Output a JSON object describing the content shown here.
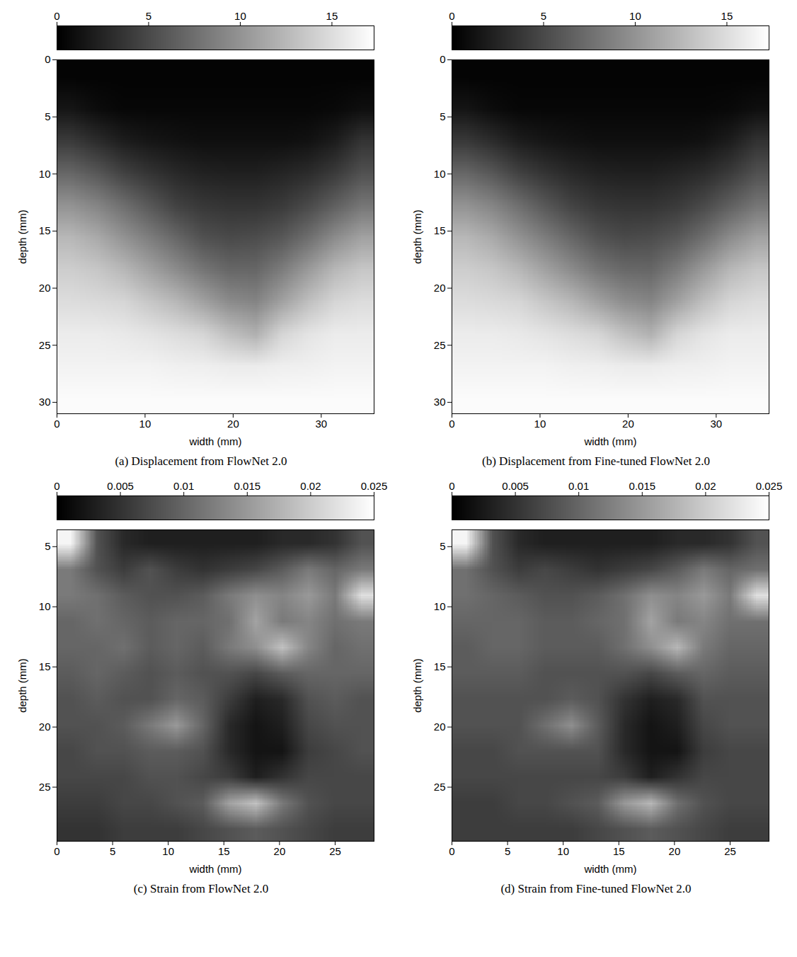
{
  "chart_data": [
    {
      "type": "heatmap",
      "title": "(a) Displacement from FlowNet 2.0",
      "xlabel": "width (mm)",
      "ylabel": "depth (mm)",
      "xlim": [
        0,
        36
      ],
      "ylim": [
        31,
        0
      ],
      "xticks": [
        0,
        10,
        20,
        30
      ],
      "yticks": [
        0,
        5,
        10,
        15,
        20,
        25,
        30
      ],
      "clim": [
        0,
        17.3
      ],
      "cticks": [
        0,
        5,
        10,
        15
      ],
      "cells": [
        [
          0.3,
          0.3,
          0.3,
          0.3,
          0.3,
          0.3,
          0.3,
          0.3,
          0.3,
          0.3,
          0.3,
          0.3
        ],
        [
          1.5,
          0.8,
          0.5,
          0.5,
          0.5,
          0.5,
          0.5,
          0.5,
          0.5,
          0.5,
          0.6,
          1.0
        ],
        [
          4.0,
          3.0,
          2.0,
          1.5,
          1.2,
          1.0,
          1.0,
          1.0,
          1.0,
          1.2,
          2.0,
          3.5
        ],
        [
          7.0,
          6.0,
          4.5,
          3.5,
          2.8,
          2.3,
          2.2,
          2.2,
          2.5,
          3.0,
          4.0,
          5.5
        ],
        [
          10.0,
          9.0,
          7.5,
          6.0,
          4.5,
          3.8,
          3.5,
          3.5,
          4.0,
          5.0,
          6.5,
          8.0
        ],
        [
          12.5,
          11.5,
          10.0,
          8.5,
          7.0,
          5.5,
          5.0,
          5.2,
          6.0,
          7.5,
          9.5,
          11.0
        ],
        [
          14.0,
          13.5,
          12.5,
          11.0,
          9.5,
          8.0,
          7.0,
          7.0,
          8.5,
          10.5,
          12.5,
          13.5
        ],
        [
          15.0,
          14.8,
          14.5,
          13.5,
          12.5,
          11.0,
          9.5,
          9.0,
          11.0,
          13.0,
          14.5,
          15.0
        ],
        [
          16.0,
          16.0,
          15.8,
          15.5,
          15.0,
          14.5,
          13.0,
          12.0,
          14.5,
          15.5,
          16.0,
          16.0
        ],
        [
          16.5,
          16.5,
          16.5,
          16.5,
          16.3,
          16.2,
          16.0,
          16.0,
          16.2,
          16.3,
          16.5,
          16.5
        ],
        [
          17.0,
          17.0,
          17.0,
          17.0,
          17.0,
          17.0,
          17.0,
          17.0,
          17.0,
          17.0,
          17.0,
          17.0
        ]
      ]
    },
    {
      "type": "heatmap",
      "title": "(b) Displacement from Fine-tuned FlowNet 2.0",
      "xlabel": "width (mm)",
      "ylabel": "depth (mm)",
      "xlim": [
        0,
        36
      ],
      "ylim": [
        31,
        0
      ],
      "xticks": [
        0,
        10,
        20,
        30
      ],
      "yticks": [
        0,
        5,
        10,
        15,
        20,
        25,
        30
      ],
      "clim": [
        0,
        17.3
      ],
      "cticks": [
        0,
        5,
        10,
        15
      ],
      "cells": [
        [
          0.3,
          0.3,
          0.3,
          0.3,
          0.3,
          0.3,
          0.3,
          0.3,
          0.3,
          0.3,
          0.3,
          0.3
        ],
        [
          1.4,
          0.8,
          0.5,
          0.5,
          0.5,
          0.5,
          0.5,
          0.5,
          0.5,
          0.5,
          0.6,
          1.0
        ],
        [
          3.9,
          3.0,
          2.0,
          1.5,
          1.2,
          1.0,
          1.0,
          1.0,
          1.0,
          1.2,
          2.0,
          3.4
        ],
        [
          7.0,
          6.0,
          4.5,
          3.5,
          2.8,
          2.3,
          2.2,
          2.2,
          2.5,
          3.0,
          4.0,
          5.5
        ],
        [
          10.0,
          9.0,
          7.5,
          6.0,
          4.6,
          3.8,
          3.5,
          3.5,
          4.0,
          5.0,
          6.5,
          8.0
        ],
        [
          12.5,
          11.5,
          10.0,
          8.5,
          7.0,
          5.6,
          5.0,
          5.2,
          6.0,
          7.5,
          9.5,
          11.0
        ],
        [
          14.0,
          13.5,
          12.5,
          11.0,
          9.5,
          8.0,
          7.1,
          7.0,
          8.5,
          10.5,
          12.5,
          13.5
        ],
        [
          15.0,
          14.8,
          14.5,
          13.5,
          12.5,
          11.0,
          9.6,
          9.1,
          11.0,
          13.0,
          14.5,
          15.0
        ],
        [
          16.0,
          16.0,
          15.8,
          15.5,
          15.0,
          14.5,
          13.1,
          12.1,
          14.5,
          15.5,
          16.0,
          16.0
        ],
        [
          16.5,
          16.5,
          16.5,
          16.5,
          16.3,
          16.2,
          16.0,
          16.0,
          16.2,
          16.3,
          16.5,
          16.5
        ],
        [
          17.0,
          17.0,
          17.0,
          17.0,
          17.0,
          17.0,
          17.0,
          17.0,
          17.0,
          17.0,
          17.0,
          17.0
        ]
      ]
    },
    {
      "type": "heatmap",
      "title": "(c) Strain from FlowNet 2.0",
      "xlabel": "width (mm)",
      "ylabel": "depth (mm)",
      "xlim": [
        0,
        28.5
      ],
      "ylim": [
        29.5,
        3.6
      ],
      "xticks": [
        0,
        5,
        10,
        15,
        20,
        25
      ],
      "yticks": [
        5,
        10,
        15,
        20,
        25
      ],
      "clim": [
        0,
        0.025
      ],
      "cticks": [
        0,
        0.005,
        0.01,
        0.015,
        0.02,
        0.025
      ],
      "cells": [
        [
          0.024,
          0.008,
          0.004,
          0.003,
          0.003,
          0.003,
          0.003,
          0.003,
          0.004,
          0.004,
          0.005,
          0.008
        ],
        [
          0.012,
          0.008,
          0.006,
          0.008,
          0.006,
          0.005,
          0.006,
          0.007,
          0.009,
          0.012,
          0.01,
          0.012
        ],
        [
          0.012,
          0.011,
          0.009,
          0.008,
          0.008,
          0.009,
          0.012,
          0.014,
          0.013,
          0.015,
          0.012,
          0.022
        ],
        [
          0.01,
          0.011,
          0.01,
          0.009,
          0.01,
          0.01,
          0.011,
          0.016,
          0.012,
          0.013,
          0.011,
          0.012
        ],
        [
          0.01,
          0.01,
          0.011,
          0.009,
          0.01,
          0.009,
          0.012,
          0.014,
          0.019,
          0.013,
          0.01,
          0.011
        ],
        [
          0.009,
          0.01,
          0.009,
          0.008,
          0.009,
          0.008,
          0.008,
          0.007,
          0.009,
          0.01,
          0.01,
          0.01
        ],
        [
          0.008,
          0.009,
          0.008,
          0.008,
          0.01,
          0.009,
          0.006,
          0.003,
          0.004,
          0.008,
          0.009,
          0.008
        ],
        [
          0.008,
          0.008,
          0.009,
          0.012,
          0.015,
          0.01,
          0.004,
          0.002,
          0.003,
          0.007,
          0.008,
          0.008
        ],
        [
          0.007,
          0.008,
          0.008,
          0.009,
          0.009,
          0.008,
          0.004,
          0.002,
          0.002,
          0.006,
          0.007,
          0.008
        ],
        [
          0.007,
          0.007,
          0.007,
          0.008,
          0.008,
          0.007,
          0.006,
          0.003,
          0.005,
          0.007,
          0.007,
          0.007
        ],
        [
          0.006,
          0.006,
          0.007,
          0.007,
          0.008,
          0.009,
          0.016,
          0.019,
          0.012,
          0.008,
          0.007,
          0.007
        ],
        [
          0.005,
          0.005,
          0.006,
          0.006,
          0.006,
          0.007,
          0.008,
          0.009,
          0.008,
          0.007,
          0.006,
          0.006
        ]
      ]
    },
    {
      "type": "heatmap",
      "title": "(d) Strain from Fine-tuned FlowNet 2.0",
      "xlabel": "width (mm)",
      "ylabel": "depth (mm)",
      "xlim": [
        0,
        28.5
      ],
      "ylim": [
        29.5,
        3.6
      ],
      "xticks": [
        0,
        5,
        10,
        15,
        20,
        25
      ],
      "yticks": [
        5,
        10,
        15,
        20,
        25
      ],
      "clim": [
        0,
        0.025
      ],
      "cticks": [
        0,
        0.005,
        0.01,
        0.015,
        0.02,
        0.025
      ],
      "cells": [
        [
          0.024,
          0.008,
          0.004,
          0.003,
          0.003,
          0.003,
          0.003,
          0.003,
          0.004,
          0.004,
          0.005,
          0.008
        ],
        [
          0.011,
          0.008,
          0.006,
          0.007,
          0.006,
          0.005,
          0.006,
          0.007,
          0.009,
          0.012,
          0.01,
          0.011
        ],
        [
          0.011,
          0.01,
          0.009,
          0.008,
          0.008,
          0.009,
          0.011,
          0.014,
          0.013,
          0.015,
          0.012,
          0.022
        ],
        [
          0.01,
          0.01,
          0.01,
          0.009,
          0.009,
          0.01,
          0.011,
          0.016,
          0.012,
          0.013,
          0.011,
          0.011
        ],
        [
          0.009,
          0.01,
          0.01,
          0.009,
          0.009,
          0.009,
          0.011,
          0.014,
          0.018,
          0.012,
          0.01,
          0.01
        ],
        [
          0.009,
          0.009,
          0.009,
          0.008,
          0.008,
          0.008,
          0.008,
          0.007,
          0.009,
          0.01,
          0.009,
          0.009
        ],
        [
          0.008,
          0.008,
          0.008,
          0.008,
          0.009,
          0.008,
          0.005,
          0.003,
          0.004,
          0.008,
          0.008,
          0.008
        ],
        [
          0.008,
          0.008,
          0.008,
          0.011,
          0.014,
          0.009,
          0.004,
          0.002,
          0.003,
          0.007,
          0.008,
          0.008
        ],
        [
          0.007,
          0.007,
          0.008,
          0.008,
          0.008,
          0.008,
          0.004,
          0.002,
          0.002,
          0.006,
          0.007,
          0.007
        ],
        [
          0.007,
          0.007,
          0.007,
          0.007,
          0.007,
          0.007,
          0.006,
          0.003,
          0.005,
          0.007,
          0.007,
          0.007
        ],
        [
          0.006,
          0.006,
          0.007,
          0.007,
          0.008,
          0.009,
          0.015,
          0.018,
          0.011,
          0.008,
          0.007,
          0.007
        ],
        [
          0.006,
          0.006,
          0.006,
          0.006,
          0.006,
          0.007,
          0.008,
          0.009,
          0.008,
          0.007,
          0.006,
          0.006
        ]
      ]
    }
  ]
}
